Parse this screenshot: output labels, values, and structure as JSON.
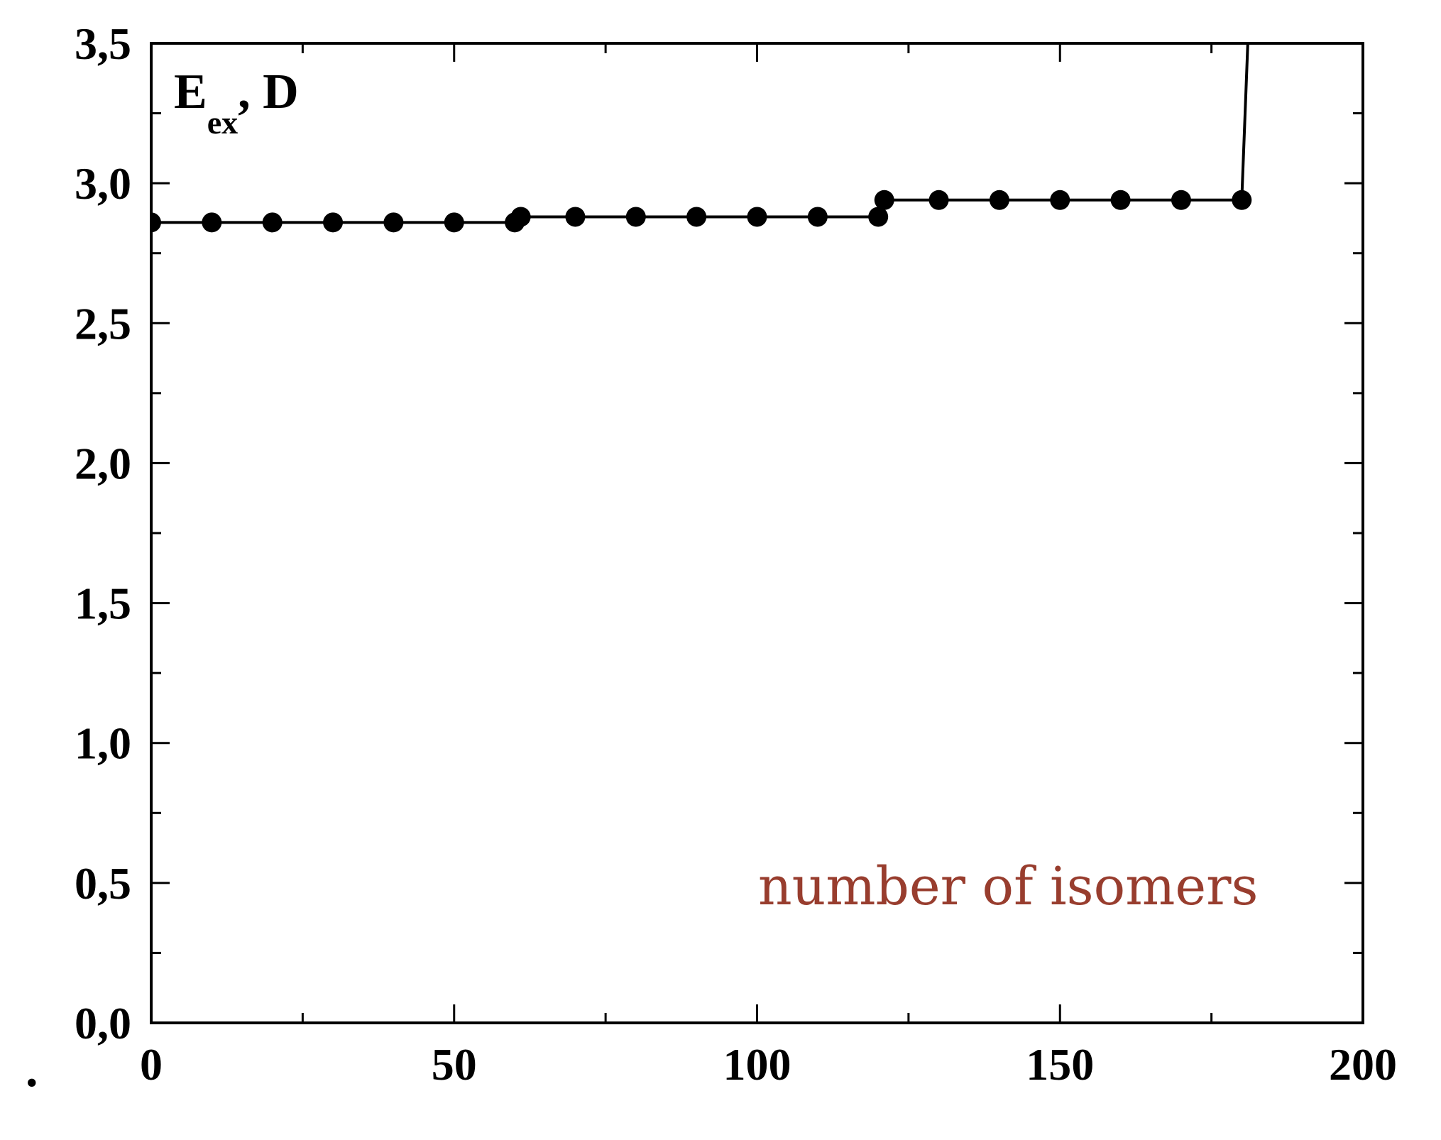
{
  "chart_data": {
    "type": "line",
    "ylabel": {
      "main": "E",
      "subscript": "ex",
      "suffix": ", D"
    },
    "xlabel": "number of isomers",
    "xlim": [
      0,
      200
    ],
    "ylim": [
      0.0,
      3.5
    ],
    "x_ticks": [
      0,
      50,
      100,
      150,
      200
    ],
    "x_tick_labels": [
      "0",
      "50",
      "100",
      "150",
      "200"
    ],
    "y_ticks": [
      0.0,
      0.5,
      1.0,
      1.5,
      2.0,
      2.5,
      3.0,
      3.5
    ],
    "y_tick_labels": [
      "0,0",
      "0,5",
      "1,0",
      "1,5",
      "2,0",
      "2,5",
      "3,0",
      "3,5"
    ],
    "x_minor_step": 25,
    "y_minor_step": 0.25,
    "grid": false,
    "series": [
      {
        "x": [
          0,
          10,
          20,
          30,
          40,
          50,
          60,
          61,
          70,
          80,
          90,
          100,
          110,
          120,
          121,
          130,
          140,
          150,
          160,
          170,
          180,
          181
        ],
        "y": [
          2.86,
          2.86,
          2.86,
          2.86,
          2.86,
          2.86,
          2.86,
          2.88,
          2.88,
          2.88,
          2.88,
          2.88,
          2.88,
          2.88,
          2.94,
          2.94,
          2.94,
          2.94,
          2.94,
          2.94,
          2.94,
          3.5
        ],
        "marker": "circle",
        "markers_on_last_point": false,
        "color": "#000000"
      }
    ],
    "stray_mark": "."
  }
}
